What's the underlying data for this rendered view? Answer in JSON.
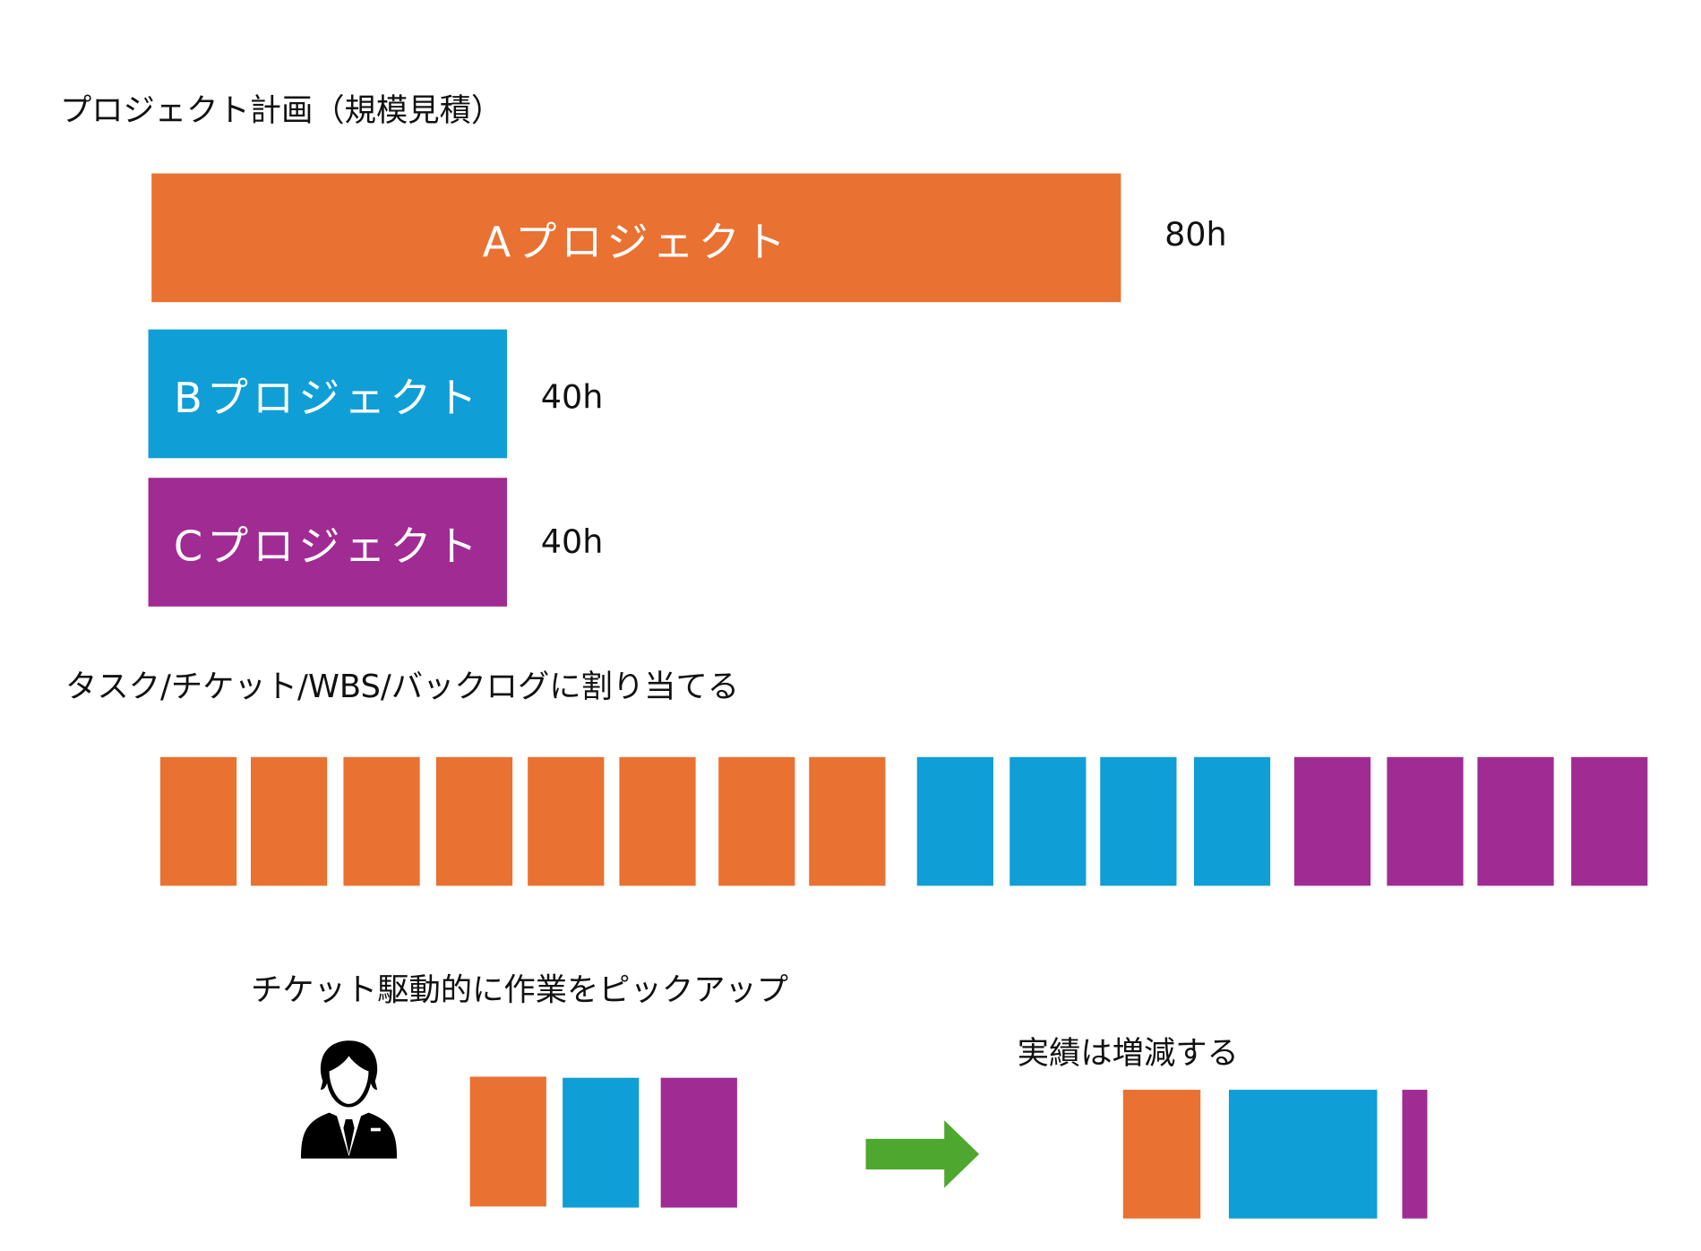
{
  "colors": {
    "a": "#E97132",
    "b": "#0F9ED5",
    "c": "#A02B93",
    "arrow": "#4EA72E"
  },
  "plan": {
    "title": "プロジェクト計画（規模見積）",
    "projects": [
      {
        "label": "Aプロジェクト",
        "hours": "80h",
        "value": 80
      },
      {
        "label": "Bプロジェクト",
        "hours": "40h",
        "value": 40
      },
      {
        "label": "Cプロジェクト",
        "hours": "40h",
        "value": 40
      }
    ]
  },
  "assign": {
    "title": "タスク/チケット/WBS/バックログに割り当てる",
    "ticket_counts": {
      "a": 8,
      "b": 4,
      "c": 4
    }
  },
  "pickup": {
    "title": "チケット駆動的に作業をピックアップ",
    "person_icon": "businessman-icon"
  },
  "result": {
    "title": "実績は増減する"
  }
}
